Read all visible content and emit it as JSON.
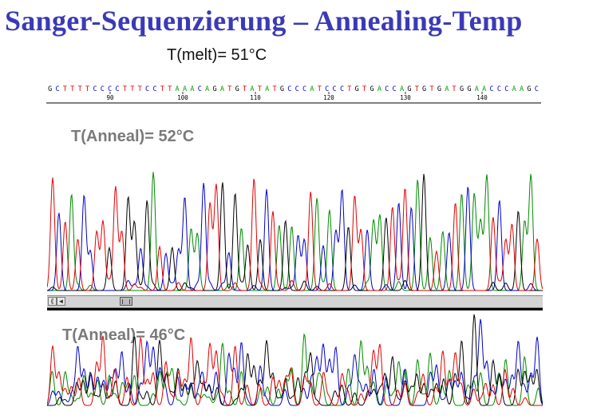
{
  "slide": {
    "title": "Sanger-Sequenzierung – Annealing-Temp",
    "title_color": "#3a3ab8",
    "melt_label": "T(melt)= 51°C"
  },
  "sequence": {
    "bases": "GCTTTTCCCCTTTCCTTAAACAGATGTATATGCCCATCCCTGTGACCAGTGTGATGGAACCCAAGC",
    "position_labels": [
      "90",
      "100",
      "110",
      "120",
      "130",
      "140"
    ],
    "base_colors": {
      "A": "#00a000",
      "C": "#0000cc",
      "G": "#000000",
      "T": "#e00000"
    }
  },
  "traces": [
    {
      "label": "T(Anneal)= 52°C",
      "quality": "clean"
    },
    {
      "label": "T(Anneal)= 46°C",
      "quality": "noisy"
    }
  ],
  "trace_colors": {
    "A": "#008a00",
    "C": "#0000c8",
    "G": "#000000",
    "T": "#e00000"
  },
  "scrollbar": {
    "left_arrow": "◄",
    "first_button": "⟪"
  }
}
